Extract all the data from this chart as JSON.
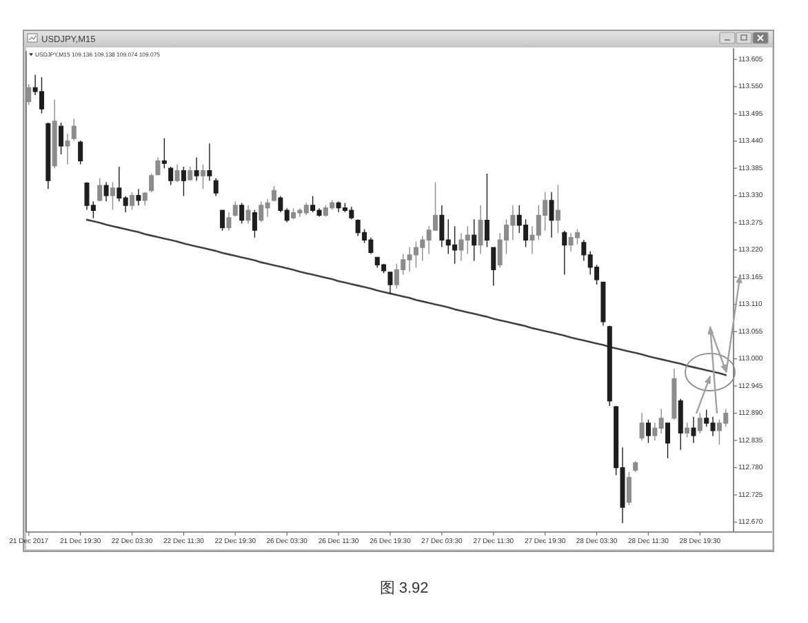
{
  "chart_data": {
    "type": "candlestick",
    "title": "USDJPY,M15",
    "subtitle": "USDJPY,M15 109.136 109.138 109.074 109.075",
    "annotations": [
      "图 3.92"
    ],
    "categories": [
      "21 Dec 2017",
      null,
      null,
      null,
      null,
      null,
      null,
      null,
      "21 Dec 19:30",
      null,
      null,
      null,
      null,
      null,
      null,
      null,
      "22 Dec 03:30",
      null,
      null,
      null,
      null,
      null,
      null,
      null,
      "22 Dec 11:30",
      null,
      null,
      null,
      null,
      null,
      null,
      null,
      "22 Dec 19:30",
      null,
      null,
      null,
      null,
      null,
      null,
      null,
      "26 Dec 03:30",
      null,
      null,
      null,
      null,
      null,
      null,
      null,
      "26 Dec 11:30",
      null,
      null,
      null,
      null,
      null,
      null,
      null,
      "26 Dec 19:30",
      null,
      null,
      null,
      null,
      null,
      null,
      null,
      "27 Dec 03:30",
      null,
      null,
      null,
      null,
      null,
      null,
      null,
      "27 Dec 11:30",
      null,
      null,
      null,
      null,
      null,
      null,
      null,
      "27 Dec 19:30",
      null,
      null,
      null,
      null,
      null,
      null,
      null,
      "28 Dec 03:30",
      null,
      null,
      null,
      null,
      null,
      null,
      null,
      "28 Dec 11:30",
      null,
      null,
      null,
      null,
      null,
      null,
      null,
      "28 Dec 19:30",
      null,
      null,
      null,
      null
    ],
    "ylim": [
      112.65,
      113.622
    ],
    "yticks": [
      113.605,
      {
        "value": 113.55,
        "label": "113.550"
      },
      113.495,
      {
        "value": 113.44,
        "label": "113.440"
      },
      113.385,
      {
        "value": 113.33,
        "label": "113.330"
      },
      113.275,
      {
        "value": 113.22,
        "label": "113.220"
      },
      113.165,
      {
        "value": 113.11,
        "label": "113.110"
      },
      113.055,
      {
        "value": 113,
        "label": "113.000"
      },
      112.945,
      {
        "value": 112.89,
        "label": "112.890"
      },
      112.835,
      {
        "value": 112.78,
        "label": "112.780"
      },
      112.725,
      {
        "value": 112.67,
        "label": "112.670"
      }
    ],
    "series": [
      {
        "type": "line",
        "color": "#404040",
        "values": [
          null,
          null,
          null,
          null,
          null,
          null,
          null,
          null,
          null,
          113.281,
          113.278,
          113.275,
          113.271,
          113.268,
          113.265,
          113.262,
          113.259,
          113.256,
          113.252,
          113.249,
          113.246,
          113.243,
          113.24,
          113.237,
          113.233,
          113.23,
          113.227,
          113.224,
          113.221,
          113.218,
          113.214,
          113.211,
          113.208,
          113.205,
          113.202,
          113.199,
          113.195,
          113.192,
          113.189,
          113.186,
          113.183,
          113.18,
          113.176,
          113.173,
          113.17,
          113.167,
          113.164,
          113.161,
          113.157,
          113.154,
          113.151,
          113.148,
          113.145,
          113.142,
          113.138,
          113.135,
          113.132,
          113.129,
          113.126,
          113.123,
          113.119,
          113.116,
          113.113,
          113.11,
          113.107,
          113.104,
          113.1,
          113.097,
          113.094,
          113.091,
          113.088,
          113.085,
          113.081,
          113.078,
          113.075,
          113.072,
          113.069,
          113.066,
          113.062,
          113.059,
          113.056,
          113.053,
          113.05,
          113.047,
          113.043,
          113.04,
          113.037,
          113.034,
          113.031,
          113.028,
          113.024,
          113.021,
          113.018,
          113.015,
          113.012,
          113.009,
          113.005,
          113.002,
          112.999,
          112.996,
          112.993,
          112.99,
          112.986,
          112.983,
          112.98,
          112.977,
          112.974,
          112.971,
          112.967
        ]
      },
      {
        "ohlc": [
          [
            113.52,
            113.555,
            113.513,
            113.548
          ],
          [
            113.548,
            113.574,
            113.533,
            113.54
          ],
          [
            113.54,
            113.569,
            113.496,
            113.505
          ],
          [
            113.475,
            113.477,
            113.343,
            113.36
          ],
          [
            113.39,
            113.524,
            113.385,
            113.48
          ],
          [
            113.47,
            113.477,
            113.413,
            113.43
          ],
          [
            113.43,
            113.455,
            113.393,
            113.44
          ],
          [
            113.445,
            113.485,
            113.441,
            113.47
          ],
          [
            113.438,
            113.441,
            113.393,
            113.4
          ],
          [
            113.355,
            113.357,
            113.301,
            113.31
          ],
          [
            113.31,
            113.318,
            113.284,
            113.3
          ],
          [
            113.32,
            113.365,
            113.318,
            113.35
          ],
          [
            113.35,
            113.357,
            113.318,
            113.33
          ],
          [
            113.33,
            113.357,
            113.301,
            113.345
          ],
          [
            113.345,
            113.388,
            113.318,
            113.325
          ],
          [
            113.325,
            113.329,
            113.296,
            113.31
          ],
          [
            113.31,
            113.337,
            113.301,
            113.33
          ],
          [
            113.33,
            113.343,
            113.31,
            113.32
          ],
          [
            113.32,
            113.337,
            113.31,
            113.335
          ],
          [
            113.34,
            113.374,
            113.337,
            113.37
          ],
          [
            113.372,
            113.407,
            113.371,
            113.4
          ],
          [
            113.4,
            113.446,
            113.385,
            113.395
          ],
          [
            113.385,
            113.388,
            113.351,
            113.36
          ],
          [
            113.36,
            113.393,
            113.357,
            113.38
          ],
          [
            113.38,
            113.388,
            113.329,
            113.36
          ],
          [
            113.362,
            113.388,
            113.36,
            113.38
          ],
          [
            113.38,
            113.407,
            113.36,
            113.37
          ],
          [
            113.37,
            113.393,
            113.343,
            113.38
          ],
          [
            113.38,
            113.435,
            113.36,
            113.37
          ],
          [
            113.36,
            113.365,
            113.329,
            113.335
          ],
          [
            113.3,
            113.301,
            113.259,
            113.265
          ],
          [
            113.265,
            113.296,
            113.259,
            113.285
          ],
          [
            113.29,
            113.318,
            113.287,
            113.31
          ],
          [
            113.31,
            113.315,
            113.273,
            113.28
          ],
          [
            113.28,
            113.31,
            113.273,
            113.3
          ],
          [
            113.295,
            113.301,
            113.245,
            113.26
          ],
          [
            113.28,
            113.318,
            113.276,
            113.31
          ],
          [
            113.305,
            113.323,
            113.287,
            113.315
          ],
          [
            113.32,
            113.349,
            113.318,
            113.34
          ],
          [
            113.325,
            113.329,
            113.296,
            113.3
          ],
          [
            113.3,
            113.304,
            113.276,
            113.28
          ],
          [
            113.285,
            113.304,
            113.282,
            113.295
          ],
          [
            113.295,
            113.304,
            113.287,
            113.3
          ],
          [
            113.295,
            113.315,
            113.29,
            113.31
          ],
          [
            113.31,
            113.329,
            113.296,
            113.3
          ],
          [
            113.3,
            113.304,
            113.287,
            113.29
          ],
          [
            113.29,
            113.31,
            113.287,
            113.305
          ],
          [
            113.305,
            113.321,
            113.301,
            113.315
          ],
          [
            113.315,
            113.318,
            113.296,
            113.305
          ],
          [
            113.305,
            113.315,
            113.296,
            113.3
          ],
          [
            113.3,
            113.307,
            113.282,
            113.285
          ],
          [
            113.28,
            113.282,
            113.248,
            113.255
          ],
          [
            113.255,
            113.262,
            113.234,
            113.24
          ],
          [
            113.24,
            113.245,
            113.212,
            113.215
          ],
          [
            113.205,
            113.206,
            113.184,
            113.19
          ],
          [
            113.19,
            113.192,
            113.173,
            113.178
          ],
          [
            113.175,
            113.176,
            113.131,
            113.15
          ],
          [
            113.15,
            113.192,
            113.142,
            113.18
          ],
          [
            113.18,
            113.212,
            113.17,
            113.2
          ],
          [
            113.2,
            113.226,
            113.176,
            113.21
          ],
          [
            113.21,
            113.237,
            113.184,
            113.225
          ],
          [
            113.225,
            113.248,
            113.198,
            113.24
          ],
          [
            113.24,
            113.268,
            113.212,
            113.26
          ],
          [
            113.26,
            113.357,
            113.259,
            113.29
          ],
          [
            113.29,
            113.31,
            113.226,
            113.24
          ],
          [
            113.24,
            113.282,
            113.212,
            113.23
          ],
          [
            113.23,
            113.268,
            113.192,
            113.22
          ],
          [
            113.22,
            113.254,
            113.198,
            113.24
          ],
          [
            113.24,
            113.268,
            113.212,
            113.25
          ],
          [
            113.25,
            113.282,
            113.198,
            113.23
          ],
          [
            113.23,
            113.31,
            113.212,
            113.28
          ],
          [
            113.28,
            113.374,
            113.226,
            113.24
          ],
          [
            113.225,
            113.226,
            113.148,
            113.18
          ],
          [
            113.19,
            113.254,
            113.184,
            113.24
          ],
          [
            113.24,
            113.282,
            113.212,
            113.27
          ],
          [
            113.27,
            113.31,
            113.24,
            113.29
          ],
          [
            113.29,
            113.31,
            113.254,
            113.27
          ],
          [
            113.27,
            113.282,
            113.226,
            113.24
          ],
          [
            113.24,
            113.268,
            113.212,
            113.25
          ],
          [
            113.25,
            113.31,
            113.24,
            113.29
          ],
          [
            113.29,
            113.337,
            113.259,
            113.32
          ],
          [
            113.32,
            113.337,
            113.245,
            113.28
          ],
          [
            113.28,
            113.351,
            113.254,
            113.3
          ],
          [
            113.255,
            113.259,
            113.17,
            113.23
          ],
          [
            113.23,
            113.254,
            113.217,
            113.245
          ],
          [
            113.245,
            113.262,
            113.231,
            113.255
          ],
          [
            113.235,
            113.24,
            113.198,
            113.21
          ],
          [
            113.21,
            113.217,
            113.17,
            113.185
          ],
          [
            113.185,
            113.19,
            113.15,
            113.16
          ],
          [
            113.155,
            113.156,
            113.067,
            113.075
          ],
          [
            113.065,
            113.067,
            112.905,
            112.915
          ],
          [
            112.903,
            112.905,
            112.765,
            112.78
          ],
          [
            112.78,
            112.821,
            112.668,
            112.7
          ],
          [
            112.71,
            112.771,
            112.704,
            112.76
          ],
          [
            112.775,
            112.793,
            112.771,
            112.79
          ],
          [
            112.84,
            112.891,
            112.835,
            112.87
          ],
          [
            112.87,
            112.877,
            112.83,
            112.845
          ],
          [
            112.845,
            112.871,
            112.835,
            112.86
          ],
          [
            112.86,
            112.899,
            112.849,
            112.88
          ],
          [
            112.87,
            112.871,
            112.799,
            112.83
          ],
          [
            112.88,
            112.98,
            112.877,
            112.96
          ],
          [
            112.915,
            112.919,
            112.816,
            112.85
          ],
          [
            112.85,
            112.871,
            112.841,
            112.86
          ],
          [
            112.86,
            112.883,
            112.83,
            112.845
          ],
          [
            112.855,
            112.891,
            112.849,
            112.88
          ],
          [
            112.88,
            112.897,
            112.863,
            112.87
          ],
          [
            112.87,
            112.883,
            112.844,
            112.855
          ],
          [
            112.855,
            112.877,
            112.827,
            112.87
          ],
          [
            112.87,
            112.899,
            112.863,
            112.89
          ]
        ],
        "colors": [
          "#8c8c8c",
          "#1e1e1e",
          "#1e1e1e",
          "#1e1e1e",
          "#8c8c8c",
          "#1e1e1e",
          "#8c8c8c",
          "#8c8c8c",
          "#1e1e1e",
          "#1e1e1e",
          "#1e1e1e",
          "#8c8c8c",
          "#1e1e1e",
          "#8c8c8c",
          "#1e1e1e",
          "#1e1e1e",
          "#8c8c8c",
          "#1e1e1e",
          "#8c8c8c",
          "#8c8c8c",
          "#8c8c8c",
          "#1e1e1e",
          "#1e1e1e",
          "#8c8c8c",
          "#1e1e1e",
          "#8c8c8c",
          "#1e1e1e",
          "#8c8c8c",
          "#1e1e1e",
          "#1e1e1e",
          "#1e1e1e",
          "#8c8c8c",
          "#8c8c8c",
          "#1e1e1e",
          "#8c8c8c",
          "#1e1e1e",
          "#8c8c8c",
          "#8c8c8c",
          "#8c8c8c",
          "#1e1e1e",
          "#1e1e1e",
          "#8c8c8c",
          "#8c8c8c",
          "#8c8c8c",
          "#1e1e1e",
          "#1e1e1e",
          "#8c8c8c",
          "#8c8c8c",
          "#1e1e1e",
          "#1e1e1e",
          "#1e1e1e",
          "#1e1e1e",
          "#1e1e1e",
          "#1e1e1e",
          "#1e1e1e",
          "#1e1e1e",
          "#1e1e1e",
          "#8c8c8c",
          "#8c8c8c",
          "#8c8c8c",
          "#8c8c8c",
          "#8c8c8c",
          "#8c8c8c",
          "#8c8c8c",
          "#1e1e1e",
          "#1e1e1e",
          "#1e1e1e",
          "#8c8c8c",
          "#8c8c8c",
          "#1e1e1e",
          "#8c8c8c",
          "#1e1e1e",
          "#1e1e1e",
          "#8c8c8c",
          "#8c8c8c",
          "#8c8c8c",
          "#1e1e1e",
          "#1e1e1e",
          "#8c8c8c",
          "#8c8c8c",
          "#8c8c8c",
          "#1e1e1e",
          "#8c8c8c",
          "#1e1e1e",
          "#8c8c8c",
          "#8c8c8c",
          "#1e1e1e",
          "#1e1e1e",
          "#1e1e1e",
          "#1e1e1e",
          "#1e1e1e",
          "#1e1e1e",
          "#1e1e1e",
          "#8c8c8c",
          "#8c8c8c",
          "#8c8c8c",
          "#1e1e1e",
          "#8c8c8c",
          "#8c8c8c",
          "#1e1e1e",
          "#8c8c8c",
          "#1e1e1e",
          "#8c8c8c",
          "#1e1e1e",
          "#8c8c8c",
          "#1e1e1e",
          "#1e1e1e",
          "#8c8c8c",
          "#8c8c8c"
        ]
      }
    ]
  }
}
